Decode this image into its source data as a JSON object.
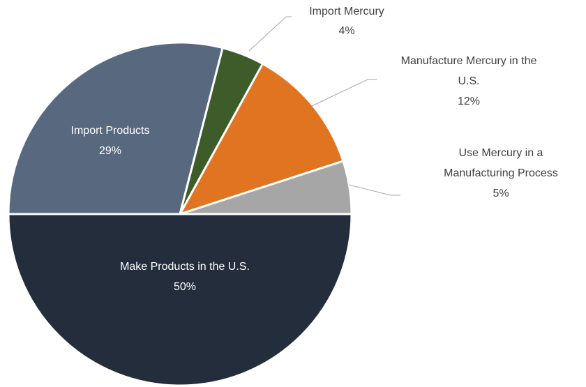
{
  "chart_data": {
    "type": "pie",
    "categories": [
      "Make Products in the U.S.",
      "Import Products",
      "Import Mercury",
      "Manufacture Mercury in the U.S.",
      "Use Mercury in a Manufacturing Process"
    ],
    "values": [
      50,
      29,
      4,
      12,
      5
    ],
    "value_labels": [
      "50%",
      "29%",
      "4%",
      "12%",
      "5%"
    ],
    "colors": [
      "#232d3b",
      "#58697f",
      "#3e5c2a",
      "#e07421",
      "#a6a6a6"
    ]
  }
}
